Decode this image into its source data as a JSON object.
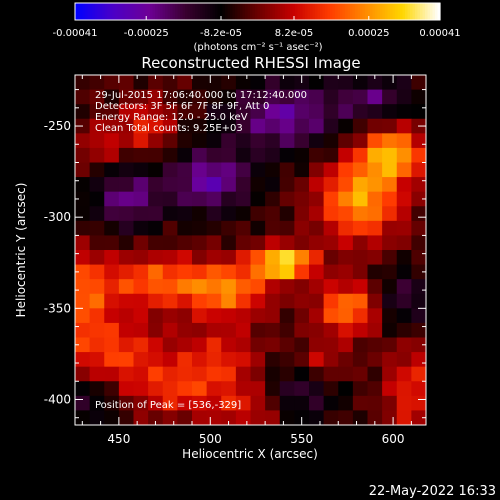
{
  "colorbar": {
    "tick_labels": [
      "-0.00041",
      "-0.00025",
      "-8.2e-05",
      "8.2e-05",
      "0.00025",
      "0.00041"
    ],
    "tick_values": [
      -0.00041,
      -0.00025,
      -8.2e-05,
      8.2e-05,
      0.00025,
      0.00041
    ],
    "range": [
      -0.00041,
      0.00041
    ],
    "units_label": "(photons cm⁻² s⁻¹ asec⁻²)",
    "colormap": [
      "#0000ff",
      "#4a00c8",
      "#6e0096",
      "#3a0030",
      "#000000",
      "#6a0000",
      "#c80000",
      "#ff3c00",
      "#ff8c00",
      "#ffd700",
      "#ffffff"
    ]
  },
  "chart_data": {
    "type": "heatmap",
    "title": "Reconstructed RHESSI Image",
    "xlabel": "Heliocentric X (arcsec)",
    "ylabel": "Heliocentric Y (arcsec)",
    "xlim": [
      426,
      618
    ],
    "ylim": [
      -414,
      -222
    ],
    "xticks": [
      450,
      500,
      550,
      600
    ],
    "yticks": [
      -250,
      -300,
      -350,
      -400
    ],
    "xtick_labels": [
      "450",
      "500",
      "550",
      "600"
    ],
    "ytick_labels": [
      "-250",
      "-300",
      "-350",
      "-400"
    ],
    "annotations": [
      "29-Jul-2015 17:06:40.000 to 17:12:40.000",
      "Detectors: 3F 5F 6F 7F 8F 9F, Att 0",
      "Energy Range: 12.0 - 25.0 keV",
      "Clean     Total counts: 9.25E+03"
    ],
    "peak_label": "Position of Peak = [536,-329]",
    "peak": [
      536,
      -329
    ],
    "grid": false,
    "grid_spec": {
      "nx": 24,
      "ny": 24
    },
    "sources": [
      {
        "x": 540,
        "y": -325,
        "sx": 12,
        "sy": 6,
        "amp": 0.00041
      },
      {
        "x": 582,
        "y": -290,
        "sx": 16,
        "sy": 16,
        "amp": 0.0003
      },
      {
        "x": 600,
        "y": -265,
        "sx": 12,
        "sy": 10,
        "amp": 0.0003
      },
      {
        "x": 510,
        "y": -340,
        "sx": 16,
        "sy": 10,
        "amp": 0.00024
      },
      {
        "x": 470,
        "y": -335,
        "sx": 22,
        "sy": 10,
        "amp": 0.00022
      },
      {
        "x": 430,
        "y": -345,
        "sx": 10,
        "sy": 18,
        "amp": 0.0002
      },
      {
        "x": 575,
        "y": -350,
        "sx": 12,
        "sy": 10,
        "amp": 0.00026
      },
      {
        "x": 450,
        "y": -375,
        "sx": 18,
        "sy": 14,
        "amp": 0.00018
      },
      {
        "x": 505,
        "y": -380,
        "sx": 16,
        "sy": 14,
        "amp": 0.00016
      },
      {
        "x": 465,
        "y": -250,
        "sx": 10,
        "sy": 10,
        "amp": 0.00016
      },
      {
        "x": 440,
        "y": -260,
        "sx": 8,
        "sy": 8,
        "amp": 0.00012
      },
      {
        "x": 610,
        "y": -395,
        "sx": 10,
        "sy": 18,
        "amp": 0.00016
      },
      {
        "x": 520,
        "y": -405,
        "sx": 14,
        "sy": 8,
        "amp": 0.00012
      },
      {
        "x": 560,
        "y": -380,
        "sx": 10,
        "sy": 8,
        "amp": 0.00013
      },
      {
        "x": 480,
        "y": -395,
        "sx": 14,
        "sy": 10,
        "amp": 0.00014
      },
      {
        "x": 540,
        "y": -245,
        "sx": 22,
        "sy": 14,
        "amp": -0.00022
      },
      {
        "x": 500,
        "y": -280,
        "sx": 16,
        "sy": 12,
        "amp": -0.00024
      },
      {
        "x": 455,
        "y": -290,
        "sx": 14,
        "sy": 12,
        "amp": -0.0002
      },
      {
        "x": 590,
        "y": -235,
        "sx": 16,
        "sy": 8,
        "amp": -0.00016
      },
      {
        "x": 605,
        "y": -345,
        "sx": 10,
        "sy": 12,
        "amp": -0.00014
      },
      {
        "x": 550,
        "y": -395,
        "sx": 14,
        "sy": 12,
        "amp": -0.00014
      },
      {
        "x": 435,
        "y": -400,
        "sx": 10,
        "sy": 10,
        "amp": -0.00012
      }
    ]
  },
  "footer": {
    "timestamp": "22-May-2022 16:33"
  }
}
